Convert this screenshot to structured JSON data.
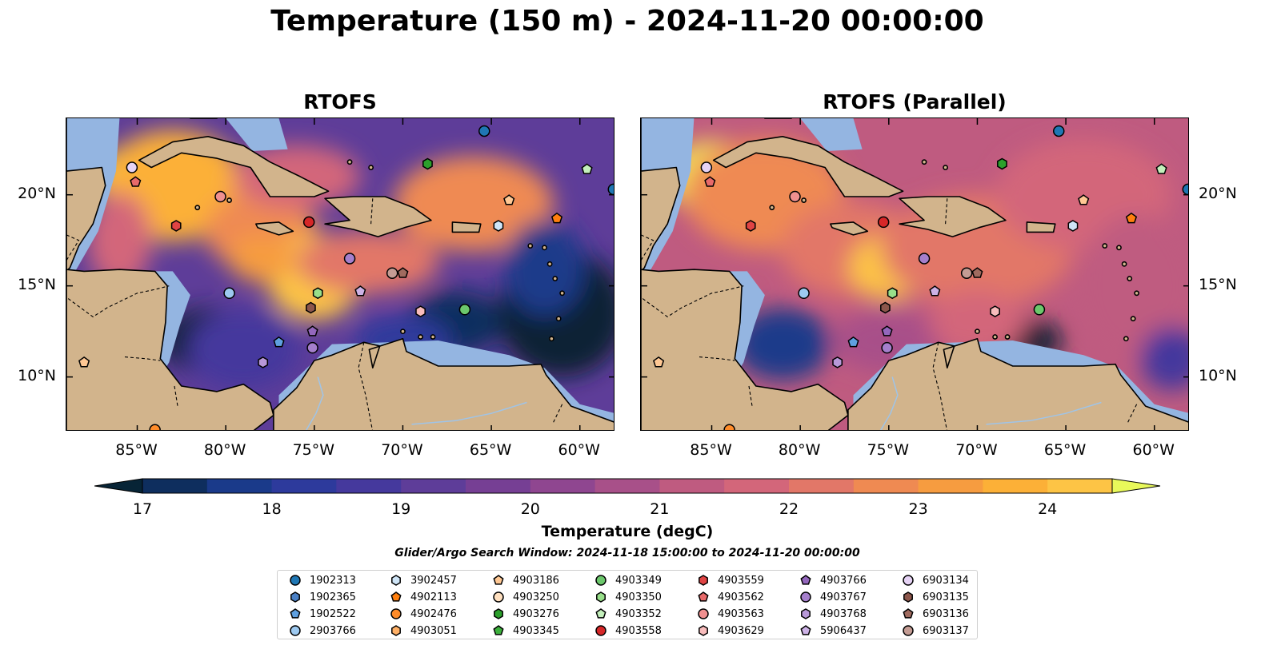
{
  "title": "Temperature (150 m) - 2024-11-20 00:00:00",
  "panels": [
    {
      "title": "RTOFS",
      "variant": "main"
    },
    {
      "title": "RTOFS (Parallel)",
      "variant": "parallel"
    }
  ],
  "axes": {
    "lon_ticks": [
      "85°W",
      "80°W",
      "75°W",
      "70°W",
      "65°W",
      "60°W"
    ],
    "lon_values": [
      -85,
      -80,
      -75,
      -70,
      -65,
      -60
    ],
    "lat_ticks": [
      "20°N",
      "15°N",
      "10°N"
    ],
    "lat_values": [
      20,
      15,
      10
    ],
    "lon_range": [
      -89,
      -58
    ],
    "lat_range": [
      7,
      24.2
    ]
  },
  "colorbar": {
    "label": "Temperature (degC)",
    "ticks": [
      "17",
      "18",
      "19",
      "20",
      "21",
      "22",
      "23",
      "24"
    ],
    "range": [
      17,
      24.5
    ],
    "colors": [
      "#072436",
      "#0e2e5e",
      "#1a3a8a",
      "#2d3a9c",
      "#45399d",
      "#5e3d99",
      "#763f94",
      "#8f4690",
      "#a85089",
      "#bf5b80",
      "#d3667a",
      "#e27768",
      "#ef8a52",
      "#f69c40",
      "#fcb037",
      "#fdc445",
      "#f1de5a"
    ]
  },
  "search_window": "Glider/Argo Search Window: 2024-11-18 15:00:00 to 2024-11-20 00:00:00",
  "legend": [
    {
      "id": "1902313",
      "color": "#1f77b4",
      "marker": "circle"
    },
    {
      "id": "1902365",
      "color": "#4a80c6",
      "marker": "hexagon"
    },
    {
      "id": "1902522",
      "color": "#5fa0e0",
      "marker": "pentagon"
    },
    {
      "id": "2903766",
      "color": "#9dc9f0",
      "marker": "circle"
    },
    {
      "id": "3902457",
      "color": "#cfe5f7",
      "marker": "hexagon"
    },
    {
      "id": "4902113",
      "color": "#ff7f0e",
      "marker": "pentagon"
    },
    {
      "id": "4902476",
      "color": "#ff8c2a",
      "marker": "circle"
    },
    {
      "id": "4903051",
      "color": "#ffb066",
      "marker": "hexagon"
    },
    {
      "id": "4903186",
      "color": "#ffc894",
      "marker": "pentagon"
    },
    {
      "id": "4903250",
      "color": "#ffe0c0",
      "marker": "circle"
    },
    {
      "id": "4903276",
      "color": "#2ca02c",
      "marker": "hexagon"
    },
    {
      "id": "4903345",
      "color": "#3cb03c",
      "marker": "pentagon"
    },
    {
      "id": "4903349",
      "color": "#6cc86c",
      "marker": "circle"
    },
    {
      "id": "4903350",
      "color": "#98df8a",
      "marker": "hexagon"
    },
    {
      "id": "4903352",
      "color": "#c4f0bc",
      "marker": "pentagon"
    },
    {
      "id": "4903558",
      "color": "#d62728",
      "marker": "circle"
    },
    {
      "id": "4903559",
      "color": "#e04444",
      "marker": "hexagon"
    },
    {
      "id": "4903562",
      "color": "#e86a6a",
      "marker": "pentagon"
    },
    {
      "id": "4903563",
      "color": "#f09090",
      "marker": "circle"
    },
    {
      "id": "4903629",
      "color": "#f8bcbc",
      "marker": "hexagon"
    },
    {
      "id": "4903766",
      "color": "#9467bd",
      "marker": "pentagon"
    },
    {
      "id": "4903767",
      "color": "#a57fcc",
      "marker": "circle"
    },
    {
      "id": "4903768",
      "color": "#b899d9",
      "marker": "hexagon"
    },
    {
      "id": "5906437",
      "color": "#cdb2e6",
      "marker": "pentagon"
    },
    {
      "id": "6903134",
      "color": "#e6d3f5",
      "marker": "circle"
    },
    {
      "id": "6903135",
      "color": "#8c564b",
      "marker": "hexagon"
    },
    {
      "id": "6903136",
      "color": "#a06b5f",
      "marker": "pentagon"
    },
    {
      "id": "6903137",
      "color": "#c49c94",
      "marker": "circle"
    }
  ],
  "floats": [
    {
      "id": "6903134",
      "lon": -85.3,
      "lat": 21.5
    },
    {
      "id": "4903562",
      "lon": -85.1,
      "lat": 20.7
    },
    {
      "id": "4903186",
      "lon": -88.0,
      "lat": 10.8
    },
    {
      "id": "4902476",
      "lon": -84.0,
      "lat": 7.1
    },
    {
      "id": "4903563",
      "lon": -80.3,
      "lat": 19.9
    },
    {
      "id": "4903559",
      "lon": -82.8,
      "lat": 18.3
    },
    {
      "id": "4903558",
      "lon": -75.3,
      "lat": 18.5
    },
    {
      "id": "2903766",
      "lon": -79.8,
      "lat": 14.6
    },
    {
      "id": "4903767",
      "lon": -73.0,
      "lat": 16.5
    },
    {
      "id": "6903137",
      "lon": -70.6,
      "lat": 15.7
    },
    {
      "id": "6903136",
      "lon": -70.0,
      "lat": 15.7
    },
    {
      "id": "4903350",
      "lon": -74.8,
      "lat": 14.6
    },
    {
      "id": "5906437",
      "lon": -72.4,
      "lat": 14.7
    },
    {
      "id": "6903135",
      "lon": -75.2,
      "lat": 13.8
    },
    {
      "id": "4903629",
      "lon": -69.0,
      "lat": 13.6
    },
    {
      "id": "4903349",
      "lon": -66.5,
      "lat": 13.7
    },
    {
      "id": "4903766",
      "lon": -75.1,
      "lat": 12.5
    },
    {
      "id": "4903767",
      "lon": -75.1,
      "lat": 11.6
    },
    {
      "id": "1902522",
      "lon": -77.0,
      "lat": 11.9
    },
    {
      "id": "4903768",
      "lon": -77.9,
      "lat": 10.8
    },
    {
      "id": "4903276",
      "lon": -68.6,
      "lat": 21.7
    },
    {
      "id": "1902313",
      "lon": -65.4,
      "lat": 23.5
    },
    {
      "id": "4903186",
      "lon": -64.0,
      "lat": 19.7
    },
    {
      "id": "4902113",
      "lon": -61.3,
      "lat": 18.7
    },
    {
      "id": "3902457",
      "lon": -64.6,
      "lat": 18.3
    },
    {
      "id": "4903352",
      "lon": -59.6,
      "lat": 21.4
    },
    {
      "id": "1902313",
      "lon": -58.1,
      "lat": 20.3
    }
  ]
}
